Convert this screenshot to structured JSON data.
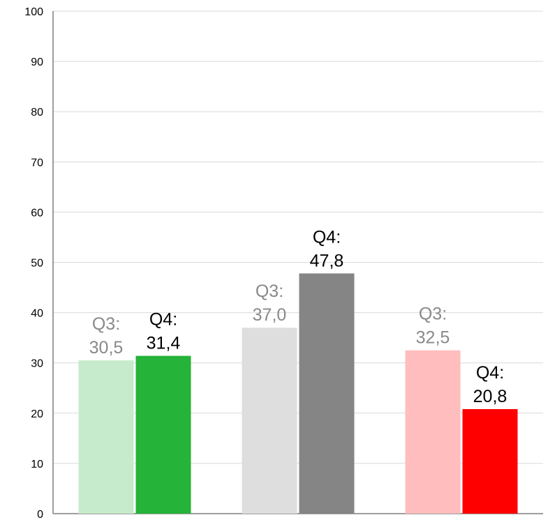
{
  "chart_data": {
    "type": "bar",
    "categories": [
      "",
      "",
      ""
    ],
    "series": [
      {
        "values": [
          30.5,
          37.0,
          32.5
        ],
        "labels": [
          "Q3:|30,5",
          "Q3:|37,0",
          "Q3:|32,5"
        ],
        "colors": [
          "#c6ebcc",
          "#dedede",
          "#ffbdbd"
        ],
        "label_color": "#898989"
      },
      {
        "values": [
          31.4,
          47.8,
          20.8
        ],
        "labels": [
          "Q4:|31,4",
          "Q4:|47,8",
          "Q4:|20,8"
        ],
        "colors": [
          "#25b339",
          "#858585",
          "#fe0000"
        ],
        "label_color": "#000000"
      }
    ],
    "ylim": [
      0,
      100
    ],
    "yticks": [
      0,
      10,
      20,
      30,
      40,
      50,
      60,
      70,
      80,
      90,
      100
    ],
    "grid": true,
    "title": "",
    "xlabel": "",
    "ylabel": ""
  }
}
